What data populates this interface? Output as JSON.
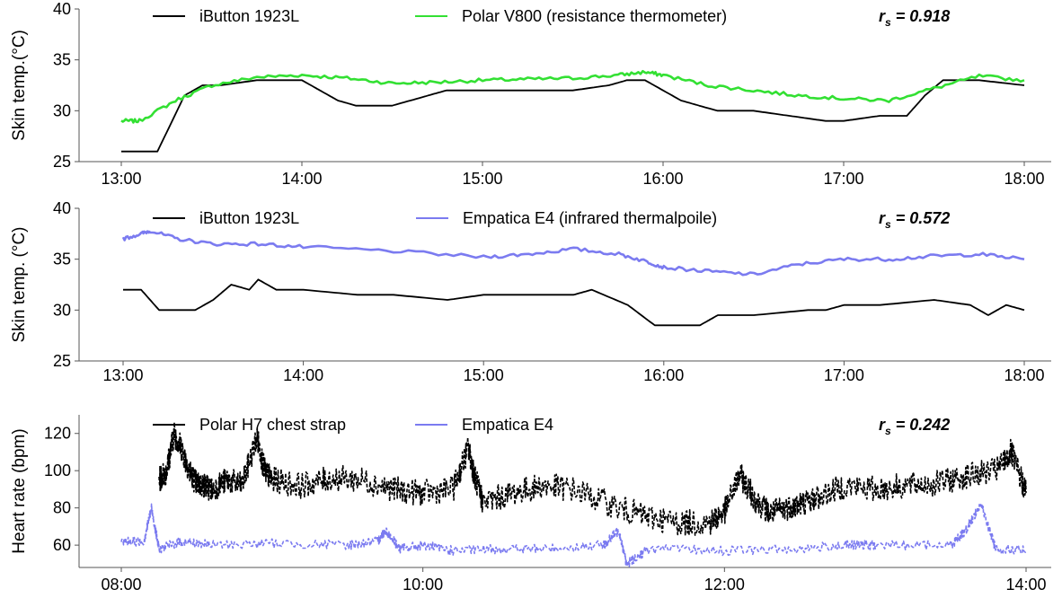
{
  "chart_data": [
    {
      "type": "line",
      "ylabel": "Skin temp.(°C)",
      "ylim": [
        25,
        40
      ],
      "yticks": [
        25,
        30,
        35,
        40
      ],
      "xlim": [
        13.0,
        18.0
      ],
      "xticks": [
        13,
        14,
        15,
        16,
        17,
        18
      ],
      "xticklabels": [
        "13:00",
        "14:00",
        "15:00",
        "16:00",
        "17:00",
        "18:00"
      ],
      "stat": {
        "symbol": "r",
        "sub": "s",
        "text": " = 0.918"
      },
      "series": [
        {
          "name": "iButton 1923L",
          "color": "#000000",
          "x": [
            13.0,
            13.2,
            13.35,
            13.45,
            13.55,
            13.75,
            14.0,
            14.1,
            14.2,
            14.3,
            14.5,
            14.7,
            14.8,
            15.0,
            15.2,
            15.5,
            15.7,
            15.8,
            15.9,
            15.95,
            16.1,
            16.3,
            16.5,
            16.7,
            16.9,
            17.0,
            17.2,
            17.35,
            17.45,
            17.55,
            17.75,
            18.0
          ],
          "y": [
            26,
            26,
            31.5,
            32.5,
            32.5,
            33,
            33,
            32,
            31,
            30.5,
            30.5,
            31.5,
            32,
            32,
            32,
            32,
            32.5,
            33,
            33,
            32.5,
            31,
            30,
            30,
            29.5,
            29,
            29,
            29.5,
            29.5,
            31.5,
            33,
            33,
            32.5
          ]
        },
        {
          "name": "Polar V800 (resistance thermometer)",
          "color": "#33e033",
          "x": [
            13.0,
            13.1,
            13.3,
            13.5,
            13.75,
            14.0,
            14.25,
            14.5,
            14.75,
            15.0,
            15.25,
            15.5,
            15.75,
            15.9,
            16.0,
            16.25,
            16.5,
            16.75,
            17.0,
            17.25,
            17.5,
            17.75,
            18.0
          ],
          "y": [
            29,
            29,
            31,
            32.5,
            33.3,
            33.5,
            33.2,
            32.7,
            32.8,
            33,
            33.1,
            33.2,
            33.5,
            33.8,
            33.5,
            32.5,
            32,
            31.5,
            31.2,
            31.0,
            32.2,
            33.4,
            33
          ]
        }
      ]
    },
    {
      "type": "line",
      "ylabel": "Skin temp. (°C)",
      "ylim": [
        25,
        40
      ],
      "yticks": [
        25,
        30,
        35,
        40
      ],
      "xlim": [
        13.0,
        18.0
      ],
      "xticks": [
        13,
        14,
        15,
        16,
        17,
        18
      ],
      "xticklabels": [
        "13:00",
        "14:00",
        "15:00",
        "16:00",
        "17:00",
        "18:00"
      ],
      "stat": {
        "symbol": "r",
        "sub": "s",
        "text": " = 0.572"
      },
      "series": [
        {
          "name": "iButton 1923L",
          "color": "#000000",
          "x": [
            13.0,
            13.1,
            13.2,
            13.4,
            13.5,
            13.6,
            13.7,
            13.75,
            13.85,
            14.0,
            14.3,
            14.5,
            14.8,
            15.0,
            15.3,
            15.5,
            15.6,
            15.8,
            15.95,
            16.2,
            16.3,
            16.5,
            16.8,
            16.9,
            17.0,
            17.2,
            17.5,
            17.7,
            17.8,
            17.9,
            18.0
          ],
          "y": [
            32,
            32,
            30,
            30,
            31,
            32.5,
            32,
            33,
            32,
            32,
            31.5,
            31.5,
            31,
            31.5,
            31.5,
            31.5,
            32,
            30.5,
            28.5,
            28.5,
            29.5,
            29.5,
            30,
            30,
            30.5,
            30.5,
            31,
            30.5,
            29.5,
            30.5,
            30
          ]
        },
        {
          "name": "Empatica E4 (infrared thermalpoile)",
          "color": "#7b7bf0",
          "x": [
            13.0,
            13.1,
            13.15,
            13.3,
            13.5,
            13.75,
            14.0,
            14.5,
            15.0,
            15.25,
            15.5,
            15.75,
            15.9,
            16.0,
            16.25,
            16.5,
            16.75,
            17.0,
            17.25,
            17.5,
            17.75,
            18.0
          ],
          "y": [
            37,
            37.5,
            37.8,
            37,
            36.5,
            36.5,
            36.2,
            35.8,
            35.2,
            35.5,
            36,
            35.5,
            34.8,
            34.2,
            33.8,
            33.5,
            34.5,
            35,
            35,
            35.3,
            35.5,
            35
          ]
        }
      ]
    },
    {
      "type": "line",
      "ylabel": "Heart rate (bpm)",
      "ylim": [
        48,
        130
      ],
      "yticks": [
        60,
        80,
        100,
        120
      ],
      "xlim": [
        8.0,
        14.0
      ],
      "xticks": [
        8,
        10,
        12,
        14
      ],
      "xticklabels": [
        "08:00",
        "10:00",
        "12:00",
        "14:00"
      ],
      "stat": {
        "symbol": "r",
        "sub": "s",
        "text": " = 0.242"
      },
      "series": [
        {
          "name": "Polar H7 chest strap",
          "color": "#000000",
          "dashed": true,
          "x": [
            8.25,
            8.3,
            8.35,
            8.4,
            8.45,
            8.5,
            8.55,
            8.6,
            8.7,
            8.8,
            8.9,
            8.95,
            9.0,
            9.2,
            9.4,
            9.6,
            9.8,
            10.0,
            10.2,
            10.3,
            10.35,
            10.4,
            10.6,
            10.8,
            11.0,
            11.3,
            11.5,
            11.7,
            11.9,
            12.0,
            12.1,
            12.2,
            12.3,
            12.4,
            12.5,
            12.6,
            12.8,
            13.0,
            13.2,
            13.4,
            13.6,
            13.8,
            13.9,
            14.0
          ],
          "y": [
            95,
            100,
            120,
            112,
            100,
            93,
            92,
            90,
            95,
            92,
            118,
            100,
            95,
            92,
            96,
            95,
            90,
            88,
            90,
            112,
            95,
            83,
            88,
            92,
            90,
            80,
            75,
            72,
            72,
            78,
            98,
            85,
            77,
            80,
            82,
            85,
            92,
            90,
            92,
            93,
            97,
            100,
            110,
            88
          ]
        },
        {
          "name": "Empatica E4",
          "color": "#7b7bf0",
          "dashed": true,
          "x": [
            8.0,
            8.15,
            8.2,
            8.25,
            8.4,
            8.6,
            9.0,
            9.5,
            9.7,
            9.75,
            9.85,
            10.0,
            10.2,
            10.5,
            10.8,
            11.2,
            11.3,
            11.35,
            11.5,
            12.0,
            12.5,
            12.8,
            13.0,
            13.5,
            13.6,
            13.7,
            13.8,
            14.0
          ],
          "y": [
            62,
            62,
            80,
            58,
            62,
            60,
            61,
            60,
            62,
            68,
            58,
            60,
            57,
            58,
            58,
            60,
            68,
            50,
            58,
            57,
            58,
            60,
            60,
            60,
            68,
            82,
            58,
            57
          ]
        }
      ]
    }
  ]
}
